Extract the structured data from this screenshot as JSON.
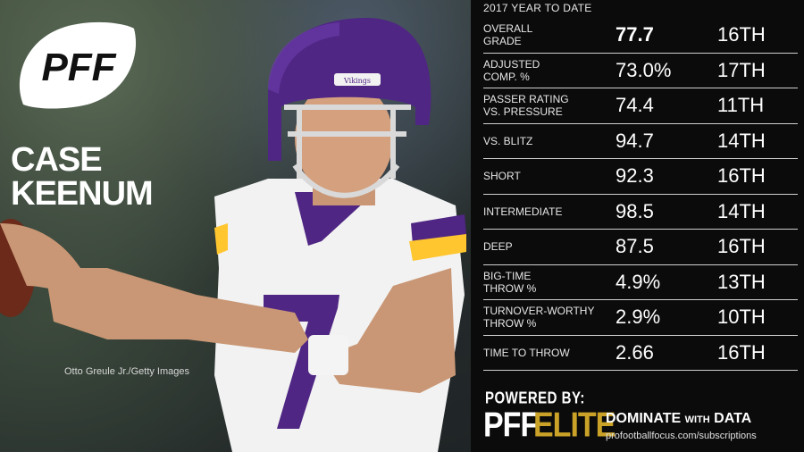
{
  "brand": {
    "logo_text": "PFF"
  },
  "player": {
    "first_name": "CASE",
    "last_name": "KEENUM",
    "jersey_brand": "VIKINGS",
    "jersey_number": "7"
  },
  "photo_credit": "Otto Greule Jr./Getty Images",
  "stats": {
    "heading": "2017 YEAR TO DATE",
    "rows": [
      {
        "label": "OVERALL\nGRADE",
        "value": "77.7",
        "rank": "16TH"
      },
      {
        "label": "ADJUSTED\nCOMP. %",
        "value": "73.0%",
        "rank": "17TH"
      },
      {
        "label": "PASSER RATING\nVS. PRESSURE",
        "value": "74.4",
        "rank": "11TH"
      },
      {
        "label": "VS. BLITZ",
        "value": "94.7",
        "rank": "14TH"
      },
      {
        "label": "SHORT",
        "value": "92.3",
        "rank": "16TH"
      },
      {
        "label": "INTERMEDIATE",
        "value": "98.5",
        "rank": "14TH"
      },
      {
        "label": "DEEP",
        "value": "87.5",
        "rank": "16TH"
      },
      {
        "label": "BIG-TIME\nTHROW %",
        "value": "4.9%",
        "rank": "13TH"
      },
      {
        "label": "TURNOVER-WORTHY\nTHROW %",
        "value": "2.9%",
        "rank": "10TH"
      },
      {
        "label": "TIME TO THROW",
        "value": "2.66",
        "rank": "16TH"
      }
    ]
  },
  "footer": {
    "powered_by": "POWERED BY:",
    "elite_pff": "PFF",
    "elite_word": "ELITE",
    "tagline_a": "DOMINATE",
    "tagline_with": "WITH",
    "tagline_b": "DATA",
    "url": "profootballfocus.com/subscriptions"
  },
  "colors": {
    "panel_bg": "#0b0b0b",
    "accent_gold": "#c9a227",
    "vikings_purple": "#4f2683",
    "vikings_gold": "#ffc62f"
  }
}
